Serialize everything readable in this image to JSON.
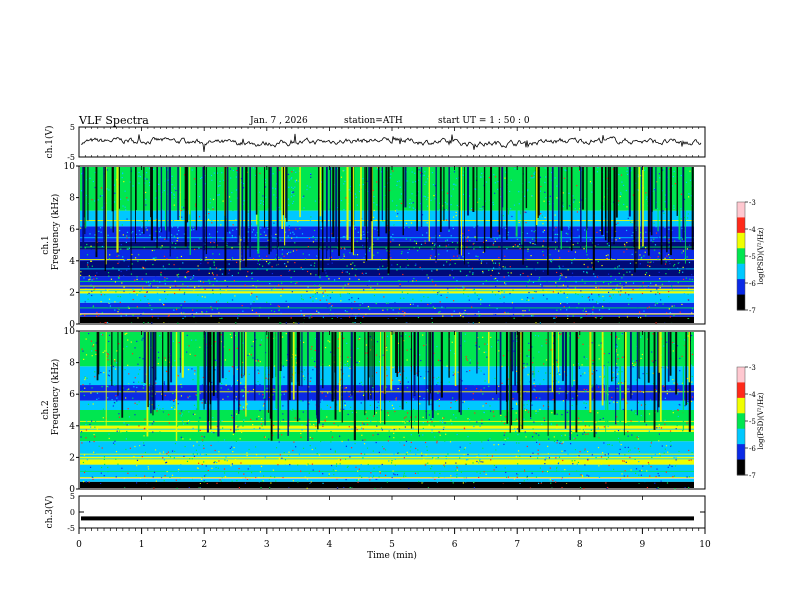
{
  "header": {
    "title": "VLF  Spectra",
    "date": "Jan. 7  , 2026",
    "station": "station=ATH",
    "start": "start  UT  =   1 : 50 : 0"
  },
  "colors": {
    "black": "#000000",
    "navy": "#000a78",
    "blue": "#0a2ae6",
    "cyan": "#00c8ff",
    "green": "#00e650",
    "yellow": "#f0ff00",
    "red": "#ff2a1a",
    "pink": "#ffc8d0"
  },
  "chart_data": [
    {
      "type": "line",
      "id": "ch1-waveform",
      "ylabel": "ch.1(V)",
      "ylim": [
        -5,
        5
      ],
      "yticks": [
        {
          "value": 5,
          "label": "5"
        },
        {
          "value": -5,
          "label": "-5"
        }
      ],
      "trace": "noisy baseline near 0 V"
    },
    {
      "type": "heatmap",
      "id": "ch1-spectrogram",
      "ylabel_top": "ch.1",
      "ylabel": "Frequency (kHz)",
      "ylim": [
        0,
        10
      ],
      "yticks": [
        {
          "value": 0,
          "label": "0"
        },
        {
          "value": 2,
          "label": "2"
        },
        {
          "value": 4,
          "label": "4"
        },
        {
          "value": 6,
          "label": "6"
        },
        {
          "value": 8,
          "label": "8"
        },
        {
          "value": 10,
          "label": "10"
        }
      ],
      "colorbar": {
        "label": "log(PSD)(V²/Hz)",
        "range": [
          -7,
          -3
        ],
        "ticks": [
          "-3",
          "-4",
          "-5",
          "-6",
          "-7"
        ]
      }
    },
    {
      "type": "heatmap",
      "id": "ch2-spectrogram",
      "ylabel_top": "ch.2",
      "ylabel": "Frequency (kHz)",
      "ylim": [
        0,
        10
      ],
      "yticks": [
        {
          "value": 0,
          "label": "0"
        },
        {
          "value": 2,
          "label": "2"
        },
        {
          "value": 4,
          "label": "4"
        },
        {
          "value": 6,
          "label": "6"
        },
        {
          "value": 8,
          "label": "8"
        },
        {
          "value": 10,
          "label": "10"
        }
      ],
      "colorbar": {
        "label": "log(PSD)(V²/Hz)",
        "range": [
          -7,
          -3
        ],
        "ticks": [
          "-3",
          "-4",
          "-5",
          "-6",
          "-7"
        ]
      }
    },
    {
      "type": "line",
      "id": "ch3-waveform",
      "ylabel": "ch.3(V)",
      "ylim": [
        -5,
        5
      ],
      "yticks": [
        {
          "value": 5,
          "label": "5"
        },
        {
          "value": 0,
          "label": "0"
        },
        {
          "value": -5,
          "label": "-5"
        }
      ],
      "trace": "flat at about -2 V"
    }
  ],
  "xaxis": {
    "label": "Time  (min)",
    "range": [
      0,
      10
    ],
    "ticks": [
      "0",
      "1",
      "2",
      "3",
      "4",
      "5",
      "6",
      "7",
      "8",
      "9",
      "10"
    ]
  }
}
